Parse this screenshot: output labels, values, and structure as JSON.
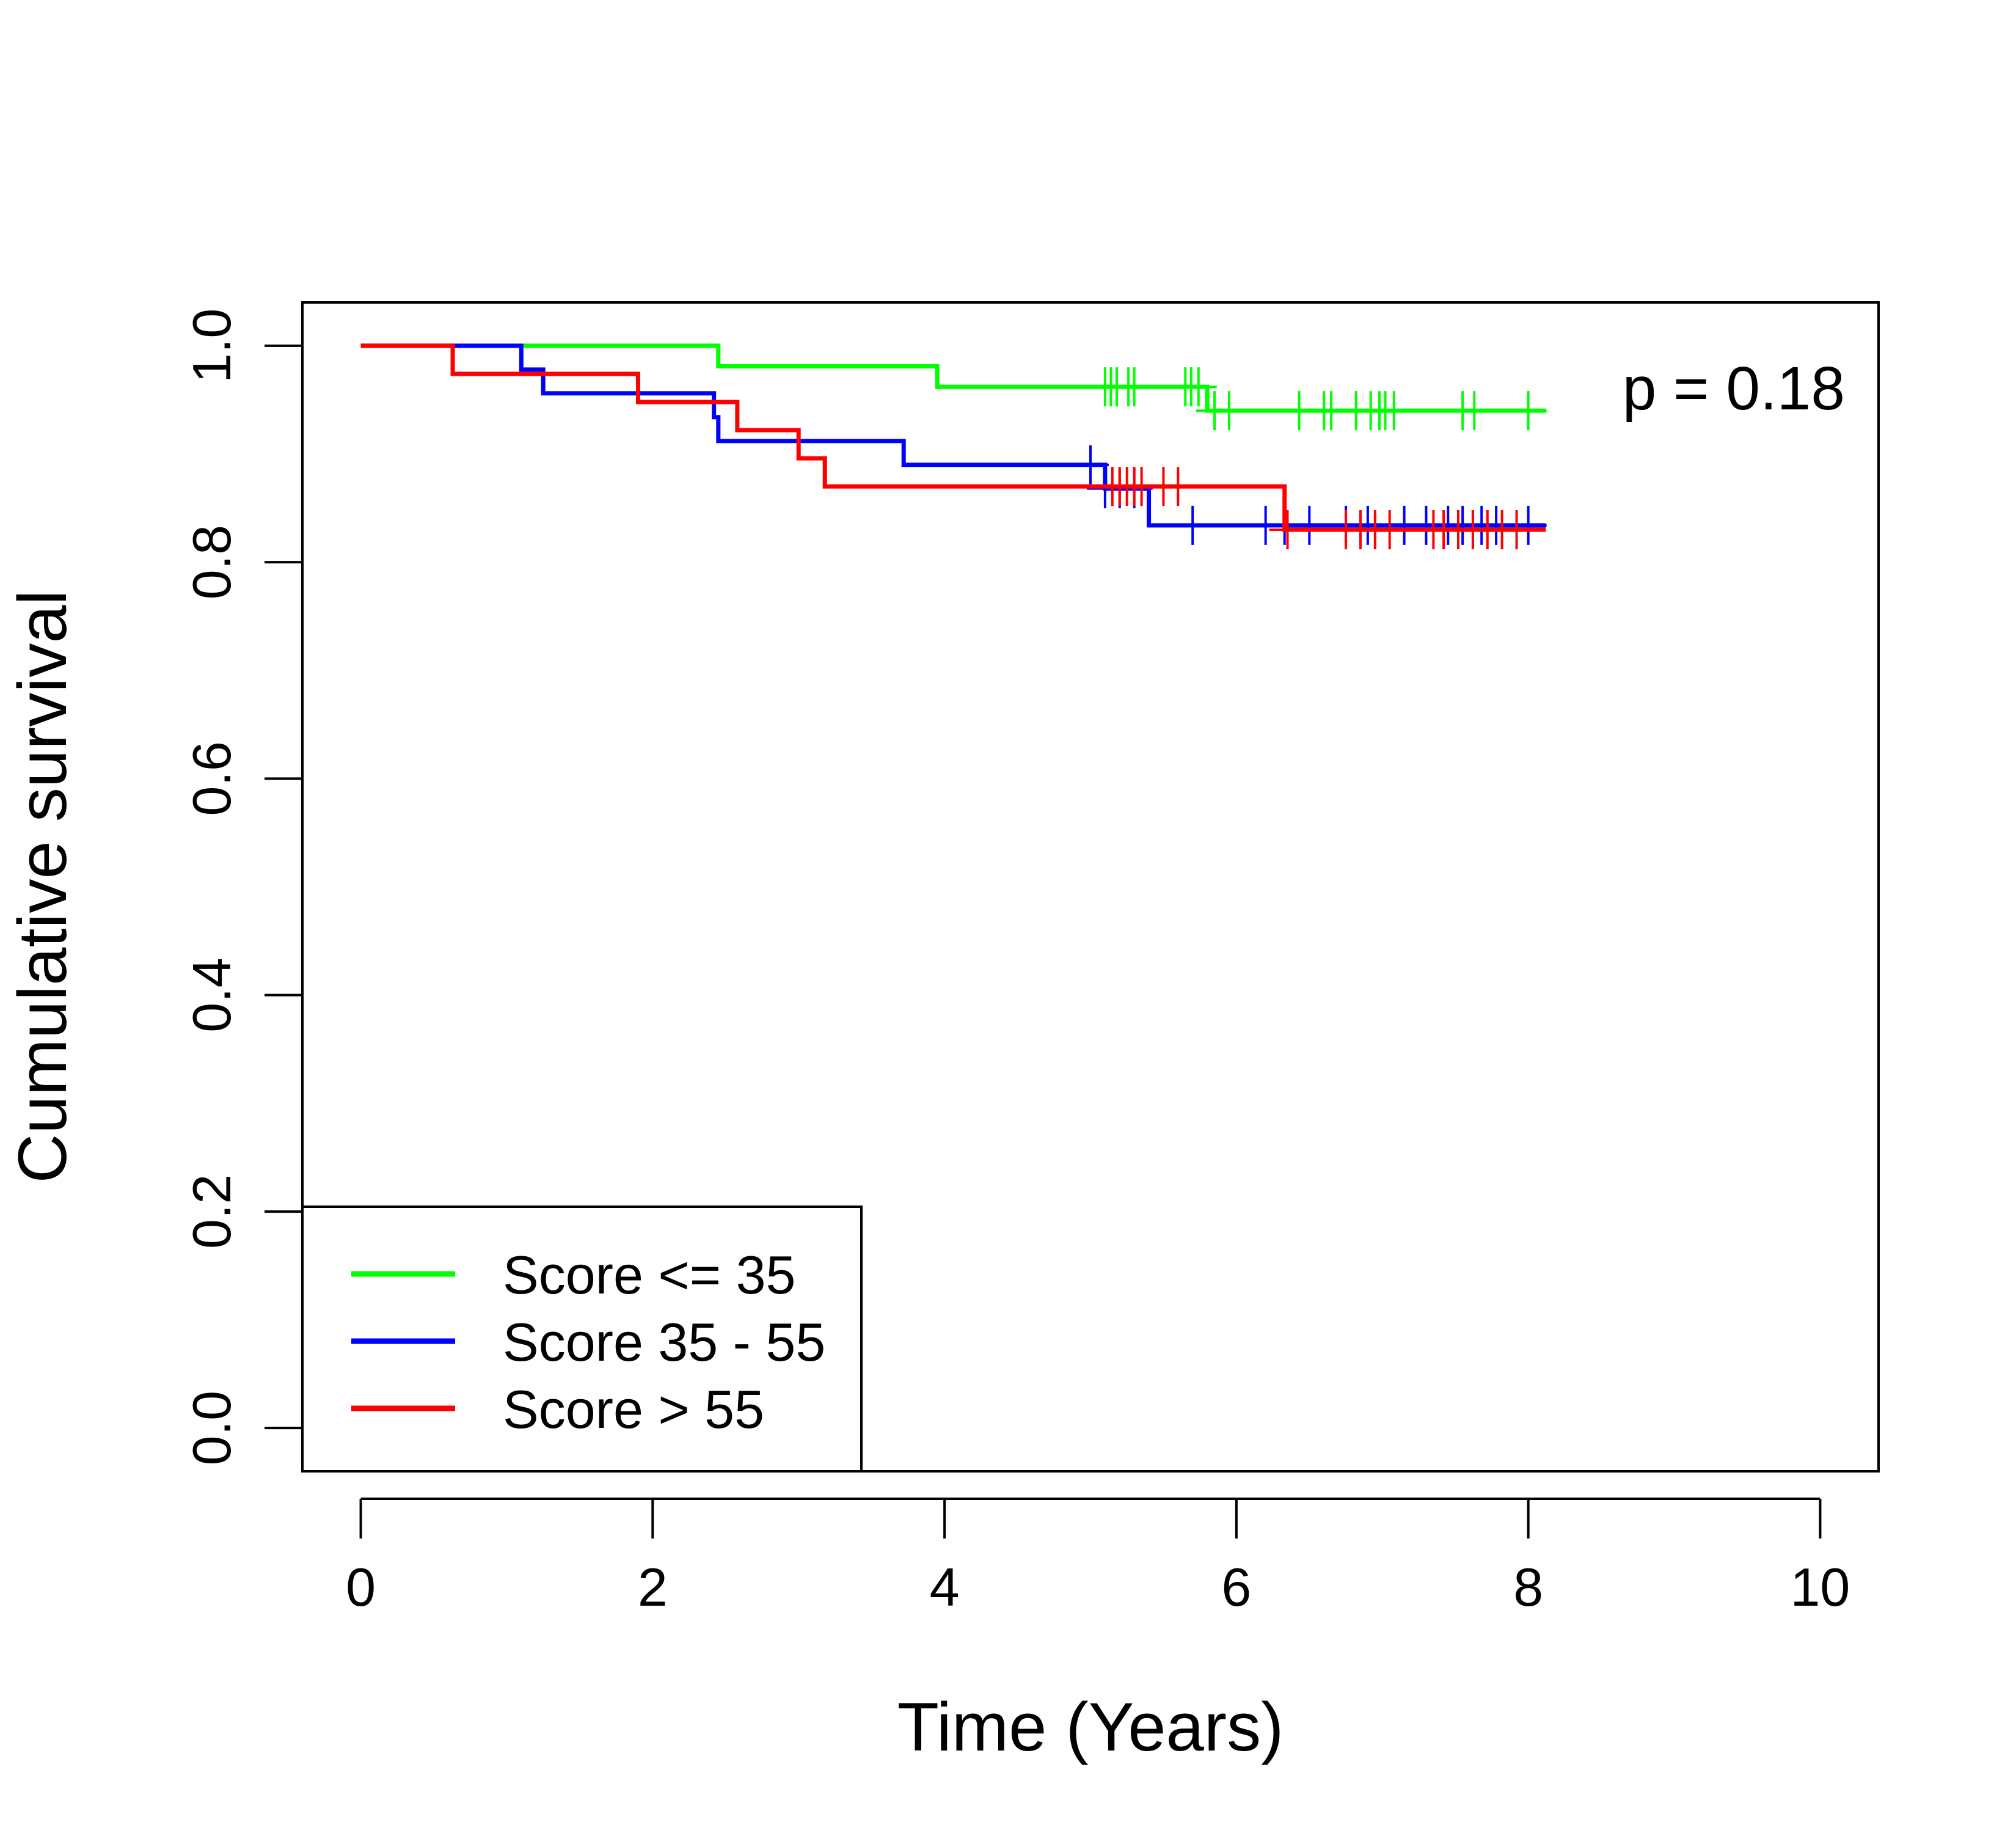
{
  "chart_data": {
    "type": "line",
    "title": "",
    "xlabel": "Time (Years)",
    "ylabel": "Cumulative survival",
    "xlim": [
      -0.4,
      10.4
    ],
    "ylim": [
      -0.04,
      1.04
    ],
    "xticks": [
      0,
      2,
      4,
      6,
      8,
      10
    ],
    "yticks": [
      0.0,
      0.2,
      0.4,
      0.6,
      0.8,
      1.0
    ],
    "xtick_labels": [
      "0",
      "2",
      "4",
      "6",
      "8",
      "10"
    ],
    "ytick_labels": [
      "0.0",
      "0.2",
      "0.4",
      "0.6",
      "0.8",
      "1.0"
    ],
    "annotation": "p = 0.18",
    "grid": false,
    "legend_position": "bottom-left",
    "series": [
      {
        "name": "Score <= 35",
        "color": "#00ff00",
        "steps": [
          [
            0,
            1.0
          ],
          [
            2.45,
            0.981
          ],
          [
            3.95,
            0.962
          ],
          [
            5.8,
            0.94
          ],
          [
            8.12,
            0.94
          ]
        ],
        "censor_x": [
          5.1,
          5.14,
          5.18,
          5.26,
          5.3,
          5.65,
          5.69,
          5.74,
          5.85,
          5.95,
          6.43,
          6.6,
          6.65,
          6.82,
          6.92,
          6.98,
          7.02,
          7.08,
          7.55,
          7.63,
          8.0
        ]
      },
      {
        "name": "Score 35 - 55",
        "color": "#0000ff",
        "steps": [
          [
            0,
            1.0
          ],
          [
            1.1,
            0.978
          ],
          [
            1.25,
            0.956
          ],
          [
            2.42,
            0.934
          ],
          [
            2.45,
            0.912
          ],
          [
            3.72,
            0.89
          ],
          [
            5.1,
            0.868
          ],
          [
            5.4,
            0.834
          ],
          [
            8.12,
            0.834
          ]
        ],
        "censor_x": [
          5.0,
          5.1,
          5.2,
          5.3,
          5.7,
          6.2,
          6.33,
          6.5,
          6.75,
          6.9,
          7.15,
          7.3,
          7.45,
          7.55,
          7.68,
          7.78,
          8.0
        ]
      },
      {
        "name": "Score > 55",
        "color": "#ff0000",
        "steps": [
          [
            0,
            1.0
          ],
          [
            0.63,
            0.974
          ],
          [
            1.9,
            0.948
          ],
          [
            2.58,
            0.922
          ],
          [
            3.0,
            0.896
          ],
          [
            3.18,
            0.87
          ],
          [
            6.33,
            0.83
          ],
          [
            8.12,
            0.83
          ]
        ],
        "censor_x": [
          5.15,
          5.2,
          5.25,
          5.3,
          5.35,
          5.5,
          5.6,
          6.35,
          6.75,
          6.85,
          6.95,
          7.05,
          7.35,
          7.42,
          7.52,
          7.62,
          7.72,
          7.82,
          7.92
        ]
      }
    ]
  }
}
